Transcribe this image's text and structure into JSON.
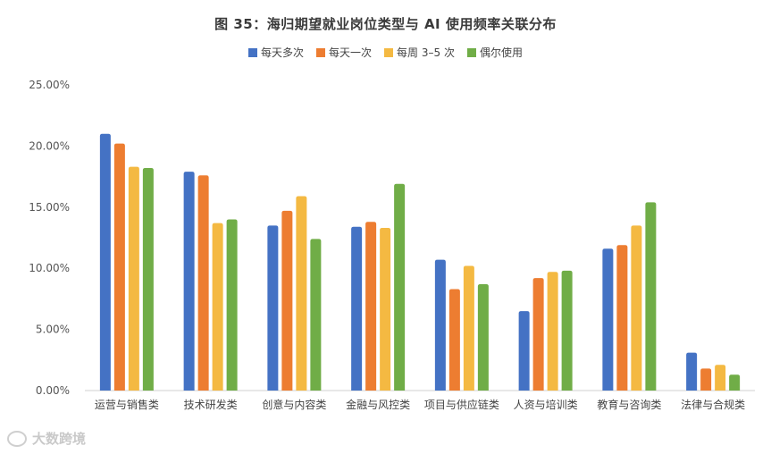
{
  "chart_data": {
    "type": "bar",
    "title": "图 35：海归期望就业岗位类型与 AI 使用频率关联分布",
    "categories": [
      "运营与销售类",
      "技术研发类",
      "创意与内容类",
      "金融与风控类",
      "项目与供应链类",
      "人资与培训类",
      "教育与咨询类",
      "法律与合规类"
    ],
    "series": [
      {
        "name": "每天多次",
        "color": "#4472C4",
        "values": [
          21.0,
          17.9,
          13.5,
          13.4,
          10.7,
          6.5,
          11.6,
          3.1
        ]
      },
      {
        "name": "每天一次",
        "color": "#ED7D31",
        "values": [
          20.2,
          17.6,
          14.7,
          13.8,
          8.3,
          9.2,
          11.9,
          1.8
        ]
      },
      {
        "name": "每周 3–5 次",
        "color": "#F4B942",
        "values": [
          18.3,
          13.7,
          15.9,
          13.3,
          10.2,
          9.7,
          13.5,
          2.1
        ]
      },
      {
        "name": "偶尔使用",
        "color": "#70AD47",
        "values": [
          18.2,
          14.0,
          12.4,
          16.9,
          8.7,
          9.8,
          15.4,
          1.3
        ]
      }
    ],
    "yticks": [
      "0.00%",
      "5.00%",
      "10.00%",
      "15.00%",
      "20.00%",
      "25.00%"
    ],
    "ylim": [
      0,
      25
    ],
    "grid": false,
    "legend": "top-center"
  },
  "watermark": "大数跨境"
}
